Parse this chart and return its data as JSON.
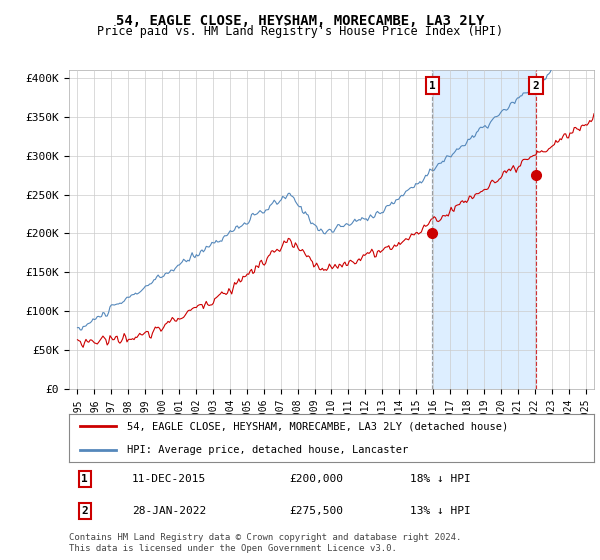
{
  "title": "54, EAGLE CLOSE, HEYSHAM, MORECAMBE, LA3 2LY",
  "subtitle": "Price paid vs. HM Land Registry's House Price Index (HPI)",
  "ylabel_ticks": [
    "£0",
    "£50K",
    "£100K",
    "£150K",
    "£200K",
    "£250K",
    "£300K",
    "£350K",
    "£400K"
  ],
  "ytick_values": [
    0,
    50000,
    100000,
    150000,
    200000,
    250000,
    300000,
    350000,
    400000
  ],
  "ylim": [
    0,
    410000
  ],
  "xlim_start": 1994.5,
  "xlim_end": 2025.5,
  "line1_color": "#cc0000",
  "line2_color": "#5588bb",
  "shade_color": "#ddeeff",
  "purchase1_date": 2015.95,
  "purchase1_price": 200000,
  "purchase2_date": 2022.08,
  "purchase2_price": 275500,
  "legend_line1": "54, EAGLE CLOSE, HEYSHAM, MORECAMBE, LA3 2LY (detached house)",
  "legend_line2": "HPI: Average price, detached house, Lancaster",
  "note1_date": "11-DEC-2015",
  "note1_price": "£200,000",
  "note1_hpi": "18% ↓ HPI",
  "note2_date": "28-JAN-2022",
  "note2_price": "£275,500",
  "note2_hpi": "13% ↓ HPI",
  "footer": "Contains HM Land Registry data © Crown copyright and database right 2024.\nThis data is licensed under the Open Government Licence v3.0.",
  "background_color": "#ffffff",
  "grid_color": "#cccccc",
  "hpi_seed": 10,
  "prop_seed": 20
}
